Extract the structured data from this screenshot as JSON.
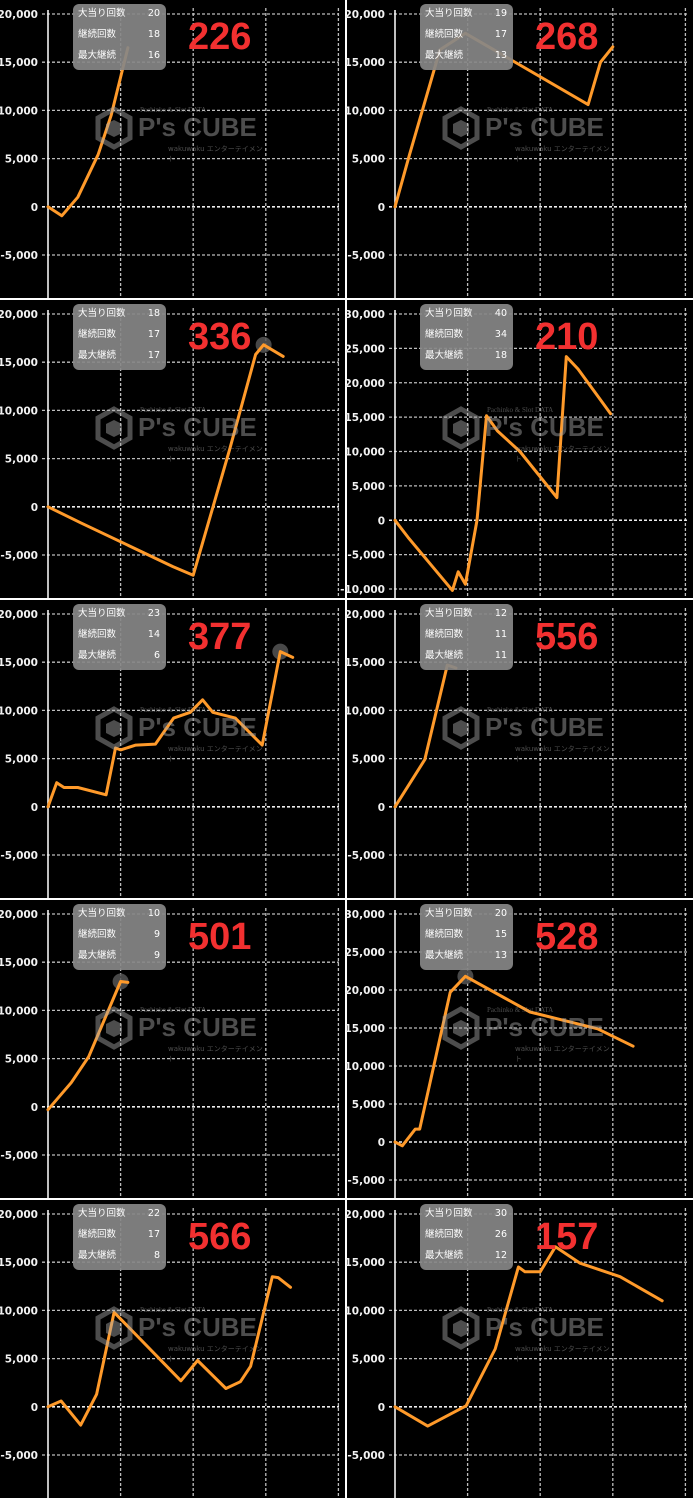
{
  "colors": {
    "background": "#000000",
    "line": "#ff9a2a",
    "grid": "#bdbdbd",
    "big_number": "#f23030",
    "info_box": "#878787",
    "divider": "#ffffff"
  },
  "info_labels": [
    "大当り回数",
    "継続回数",
    "最大継続"
  ],
  "watermark": {
    "brand": "P's CUBE",
    "top": "Pachinko & Slot DATA",
    "sub": "wakuwaku エンターテイメント"
  },
  "chart_data": [
    {
      "type": "line",
      "label": "226",
      "stats": [
        "20",
        "18",
        "16"
      ],
      "ylim": [
        -9600,
        20000
      ],
      "yticks": [
        20000,
        15000,
        10000,
        5000,
        0,
        -5000
      ],
      "ytick_labels": [
        "20,000",
        "15,000",
        "10,000",
        "5,000",
        "0",
        "-5,000"
      ],
      "grid": true,
      "points": [
        [
          0,
          0
        ],
        [
          0.19,
          -930
        ],
        [
          0.41,
          1000
        ],
        [
          0.69,
          5400
        ],
        [
          0.87,
          9500
        ],
        [
          1.1,
          16500
        ]
      ]
    },
    {
      "type": "line",
      "label": "268",
      "stats": [
        "19",
        "17",
        "13"
      ],
      "ylim": [
        -9600,
        20000
      ],
      "yticks": [
        20000,
        15000,
        10000,
        5000,
        0,
        -5000
      ],
      "ytick_labels": [
        "20,000",
        "15,000",
        "10,000",
        "5,000",
        "0",
        "-5,000"
      ],
      "grid": true,
      "points": [
        [
          0,
          0
        ],
        [
          0.2,
          5400
        ],
        [
          0.62,
          16300
        ],
        [
          0.97,
          18000
        ],
        [
          2.66,
          10600
        ],
        [
          2.83,
          15000
        ],
        [
          3.0,
          16600
        ]
      ]
    },
    {
      "type": "line",
      "label": "336",
      "stats": [
        "18",
        "17",
        "17"
      ],
      "ylim": [
        -9600,
        20000
      ],
      "yticks": [
        20000,
        15000,
        10000,
        5000,
        0,
        -5000
      ],
      "ytick_labels": [
        "20,000",
        "15,000",
        "10,000",
        "5,000",
        "0",
        "-5,000"
      ],
      "grid": true,
      "points": [
        [
          0,
          0
        ],
        [
          0.45,
          -1660
        ],
        [
          1.72,
          -6200
        ],
        [
          2.0,
          -7100
        ],
        [
          2.5,
          5900
        ],
        [
          2.86,
          15800
        ],
        [
          2.97,
          16800
        ],
        [
          3.24,
          15600
        ]
      ],
      "highlight_index": 6
    },
    {
      "type": "line",
      "label": "210",
      "stats": [
        "40",
        "34",
        "18"
      ],
      "ylim": [
        -10300,
        30000
      ],
      "yticks": [
        30000,
        25000,
        20000,
        15000,
        10000,
        5000,
        0,
        -5000,
        -10000
      ],
      "ytick_labels": [
        "30,000",
        "25,000",
        "20,000",
        "15,000",
        "10,000",
        "5,000",
        "0",
        "-5,000",
        "-10,000"
      ],
      "grid": true,
      "points": [
        [
          0,
          0
        ],
        [
          0.18,
          -2500
        ],
        [
          0.79,
          -10200
        ],
        [
          0.87,
          -7500
        ],
        [
          0.97,
          -9300
        ],
        [
          1.13,
          0
        ],
        [
          1.26,
          15200
        ],
        [
          1.41,
          13000
        ],
        [
          1.72,
          10000
        ],
        [
          2.23,
          3300
        ],
        [
          2.36,
          23800
        ],
        [
          2.52,
          22000
        ],
        [
          2.97,
          15500
        ]
      ]
    },
    {
      "type": "line",
      "label": "377",
      "stats": [
        "23",
        "14",
        "6"
      ],
      "ylim": [
        -9600,
        20000
      ],
      "yticks": [
        20000,
        15000,
        10000,
        5000,
        0,
        -5000
      ],
      "ytick_labels": [
        "20,000",
        "15,000",
        "10,000",
        "5,000",
        "0",
        "-5,000"
      ],
      "grid": true,
      "points": [
        [
          0,
          0
        ],
        [
          0.12,
          2500
        ],
        [
          0.22,
          2000
        ],
        [
          0.41,
          2000
        ],
        [
          0.8,
          1250
        ],
        [
          0.93,
          6100
        ],
        [
          1.0,
          5900
        ],
        [
          1.21,
          6400
        ],
        [
          1.48,
          6500
        ],
        [
          1.73,
          9200
        ],
        [
          1.96,
          9800
        ],
        [
          2.13,
          11100
        ],
        [
          2.27,
          9800
        ],
        [
          2.58,
          9200
        ],
        [
          2.95,
          6400
        ],
        [
          3.2,
          16100
        ],
        [
          3.37,
          15500
        ]
      ],
      "highlight_index": 15
    },
    {
      "type": "line",
      "label": "556",
      "stats": [
        "12",
        "11",
        "11"
      ],
      "ylim": [
        -9600,
        20000
      ],
      "yticks": [
        20000,
        15000,
        10000,
        5000,
        0,
        -5000
      ],
      "ytick_labels": [
        "20,000",
        "15,000",
        "10,000",
        "5,000",
        "0",
        "-5,000"
      ],
      "grid": true,
      "points": [
        [
          0,
          0
        ],
        [
          0.41,
          4900
        ],
        [
          0.72,
          14700
        ],
        [
          0.84,
          14400
        ]
      ]
    },
    {
      "type": "line",
      "label": "501",
      "stats": [
        "10",
        "9",
        "9"
      ],
      "ylim": [
        -9600,
        20000
      ],
      "yticks": [
        20000,
        15000,
        10000,
        5000,
        0,
        -5000
      ],
      "ytick_labels": [
        "20,000",
        "15,000",
        "10,000",
        "5,000",
        "0",
        "-5,000"
      ],
      "grid": true,
      "points": [
        [
          0,
          -300
        ],
        [
          0.32,
          2500
        ],
        [
          0.56,
          5200
        ],
        [
          1.0,
          13000
        ],
        [
          1.1,
          12900
        ]
      ],
      "highlight_index": 3
    },
    {
      "type": "line",
      "label": "528",
      "stats": [
        "20",
        "15",
        "13"
      ],
      "ylim": [
        -7400,
        30000
      ],
      "yticks": [
        30000,
        25000,
        20000,
        15000,
        10000,
        5000,
        0,
        -5000
      ],
      "ytick_labels": [
        "30,000",
        "25,000",
        "20,000",
        "15,000",
        "10,000",
        "5,000",
        "0",
        "-5,000"
      ],
      "grid": true,
      "points": [
        [
          0,
          0
        ],
        [
          0.1,
          -500
        ],
        [
          0.28,
          1700
        ],
        [
          0.34,
          1700
        ],
        [
          0.76,
          19700
        ],
        [
          0.97,
          21800
        ],
        [
          1.86,
          17100
        ],
        [
          2.79,
          14900
        ],
        [
          3.28,
          12600
        ]
      ],
      "highlight_index": 5
    },
    {
      "type": "line",
      "label": "566",
      "stats": [
        "22",
        "17",
        "8"
      ],
      "ylim": [
        -9600,
        20000
      ],
      "yticks": [
        20000,
        15000,
        10000,
        5000,
        0,
        -5000
      ],
      "ytick_labels": [
        "20,000",
        "15,000",
        "10,000",
        "5,000",
        "0",
        "-5,000"
      ],
      "grid": true,
      "points": [
        [
          0,
          0
        ],
        [
          0.18,
          600
        ],
        [
          0.45,
          -1900
        ],
        [
          0.67,
          1300
        ],
        [
          0.91,
          9800
        ],
        [
          1.83,
          2700
        ],
        [
          2.06,
          4800
        ],
        [
          2.45,
          1900
        ],
        [
          2.65,
          2600
        ],
        [
          2.79,
          4200
        ],
        [
          3.09,
          13500
        ],
        [
          3.17,
          13400
        ],
        [
          3.34,
          12400
        ]
      ]
    },
    {
      "type": "line",
      "label": "157",
      "stats": [
        "30",
        "26",
        "12"
      ],
      "ylim": [
        -9600,
        20000
      ],
      "yticks": [
        20000,
        15000,
        10000,
        5000,
        0,
        -5000
      ],
      "ytick_labels": [
        "20,000",
        "15,000",
        "10,000",
        "5,000",
        "0",
        "-5,000"
      ],
      "grid": true,
      "points": [
        [
          0,
          0
        ],
        [
          0.45,
          -2000
        ],
        [
          0.98,
          100
        ],
        [
          1.38,
          6000
        ],
        [
          1.7,
          14500
        ],
        [
          1.79,
          14000
        ],
        [
          2.0,
          14000
        ],
        [
          2.21,
          16600
        ],
        [
          2.55,
          14900
        ],
        [
          3.1,
          13500
        ],
        [
          3.68,
          11000
        ]
      ]
    }
  ]
}
